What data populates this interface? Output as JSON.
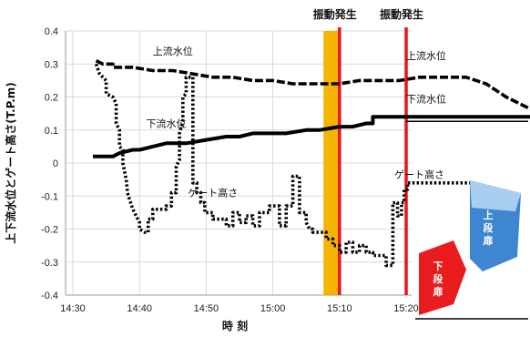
{
  "chart_data": {
    "type": "line",
    "ylabel": "上下流水位とゲート高さ(T.P.m)",
    "xlabel": "時 刻",
    "ylim": [
      -0.4,
      0.4
    ],
    "yticks": [
      "0.4",
      "0.3",
      "0.2",
      "0.1",
      "0",
      "-0.1",
      "-0.2",
      "-0.3",
      "-0.4"
    ],
    "xlim_minutes": [
      870,
      925
    ],
    "xticks": [
      {
        "label": "14:30",
        "minute": 870
      },
      {
        "label": "14:40",
        "minute": 880
      },
      {
        "label": "14:50",
        "minute": 890
      },
      {
        "label": "15:00",
        "minute": 900
      },
      {
        "label": "15:10",
        "minute": 910
      },
      {
        "label": "15:20",
        "minute": 920
      }
    ],
    "grid": true,
    "events": [
      {
        "label": "振動発生",
        "minute": 910,
        "band_start": 907.6,
        "color": "#f5b400",
        "line_color": "#e8151c"
      },
      {
        "label": "振動発生",
        "minute": 920,
        "color": "#e8151c"
      }
    ],
    "series": [
      {
        "name": "上流水位",
        "style": "dashed-thick",
        "points": [
          [
            873.5,
            0.31
          ],
          [
            874.5,
            0.3
          ],
          [
            876,
            0.3
          ],
          [
            876,
            0.29
          ],
          [
            879,
            0.29
          ],
          [
            882,
            0.28
          ],
          [
            885,
            0.28
          ],
          [
            888,
            0.27
          ],
          [
            891,
            0.26
          ],
          [
            894,
            0.26
          ],
          [
            897,
            0.25
          ],
          [
            900,
            0.25
          ],
          [
            903,
            0.24
          ],
          [
            906,
            0.24
          ],
          [
            910,
            0.24
          ],
          [
            913,
            0.25
          ],
          [
            916,
            0.25
          ],
          [
            919,
            0.25
          ],
          [
            922,
            0.26
          ],
          [
            926,
            0.26
          ],
          [
            929,
            0.26
          ],
          [
            932,
            0.24
          ],
          [
            935,
            0.2
          ],
          [
            938,
            0.17
          ],
          [
            941,
            0.14
          ],
          [
            943,
            0.14
          ]
        ]
      },
      {
        "name": "下流水位",
        "style": "solid-thick",
        "points": [
          [
            873,
            0.02
          ],
          [
            876,
            0.02
          ],
          [
            877,
            0.03
          ],
          [
            879,
            0.04
          ],
          [
            880,
            0.04
          ],
          [
            882,
            0.05
          ],
          [
            884,
            0.06
          ],
          [
            887,
            0.06
          ],
          [
            890,
            0.07
          ],
          [
            893,
            0.08
          ],
          [
            895,
            0.08
          ],
          [
            897,
            0.09
          ],
          [
            899,
            0.09
          ],
          [
            902,
            0.09
          ],
          [
            905,
            0.1
          ],
          [
            907,
            0.1
          ],
          [
            910,
            0.11
          ],
          [
            912,
            0.11
          ],
          [
            914,
            0.12
          ],
          [
            915,
            0.12
          ],
          [
            915,
            0.14
          ],
          [
            920,
            0.14
          ],
          [
            943,
            0.14
          ]
        ]
      },
      {
        "name": "ゲート高さ",
        "style": "dotted-thick",
        "points": [
          [
            873.5,
            0.3
          ],
          [
            874,
            0.27
          ],
          [
            875,
            0.25
          ],
          [
            875,
            0.21
          ],
          [
            876,
            0.2
          ],
          [
            876.5,
            0.18
          ],
          [
            876.5,
            0.12
          ],
          [
            877,
            0.1
          ],
          [
            877,
            0.05
          ],
          [
            877.5,
            0.04
          ],
          [
            877.5,
            0.0
          ],
          [
            878,
            -0.05
          ],
          [
            878.2,
            -0.09
          ],
          [
            878.5,
            -0.11
          ],
          [
            879,
            -0.14
          ],
          [
            879.5,
            -0.16
          ],
          [
            880,
            -0.18
          ],
          [
            880,
            -0.2
          ],
          [
            880.8,
            -0.21
          ],
          [
            881.3,
            -0.21
          ],
          [
            881.3,
            -0.17
          ],
          [
            882,
            -0.17
          ],
          [
            882,
            -0.14
          ],
          [
            884,
            -0.14
          ],
          [
            884,
            -0.13
          ],
          [
            884.8,
            -0.13
          ],
          [
            884.8,
            -0.09
          ],
          [
            885.5,
            -0.09
          ],
          [
            885.5,
            -0.01
          ],
          [
            886,
            0.01
          ],
          [
            886,
            0.09
          ],
          [
            886.5,
            0.13
          ],
          [
            886.5,
            0.2
          ],
          [
            887,
            0.21
          ],
          [
            887,
            0.26
          ],
          [
            888,
            0.26
          ],
          [
            888,
            -0.06
          ],
          [
            888.6,
            -0.06
          ],
          [
            888.6,
            -0.09
          ],
          [
            889.2,
            -0.09
          ],
          [
            889.2,
            -0.12
          ],
          [
            889.8,
            -0.12
          ],
          [
            889.8,
            -0.15
          ],
          [
            891,
            -0.15
          ],
          [
            891,
            -0.17
          ],
          [
            893,
            -0.17
          ],
          [
            893,
            -0.19
          ],
          [
            894,
            -0.19
          ],
          [
            894,
            -0.15
          ],
          [
            895,
            -0.15
          ],
          [
            895,
            -0.18
          ],
          [
            896,
            -0.18
          ],
          [
            896,
            -0.16
          ],
          [
            897,
            -0.16
          ],
          [
            897,
            -0.19
          ],
          [
            898,
            -0.19
          ],
          [
            898,
            -0.15
          ],
          [
            899.5,
            -0.15
          ],
          [
            899.5,
            -0.13
          ],
          [
            901,
            -0.13
          ],
          [
            901,
            -0.19
          ],
          [
            902,
            -0.19
          ],
          [
            902,
            -0.13
          ],
          [
            903,
            -0.13
          ],
          [
            903,
            -0.04
          ],
          [
            904,
            -0.04
          ],
          [
            904,
            -0.15
          ],
          [
            905,
            -0.15
          ],
          [
            905,
            -0.18
          ],
          [
            905.5,
            -0.2
          ],
          [
            906,
            -0.2
          ],
          [
            906,
            -0.21
          ],
          [
            908,
            -0.21
          ],
          [
            908,
            -0.23
          ],
          [
            909,
            -0.23
          ],
          [
            909,
            -0.25
          ],
          [
            910,
            -0.25
          ],
          [
            910,
            -0.27
          ],
          [
            911,
            -0.27
          ],
          [
            911,
            -0.24
          ],
          [
            912,
            -0.24
          ],
          [
            912,
            -0.27
          ],
          [
            913,
            -0.27
          ],
          [
            913,
            -0.25
          ],
          [
            914,
            -0.25
          ],
          [
            914,
            -0.27
          ],
          [
            915,
            -0.27
          ],
          [
            915,
            -0.28
          ],
          [
            917,
            -0.28
          ],
          [
            917,
            -0.31
          ],
          [
            918,
            -0.31
          ],
          [
            918,
            -0.12
          ],
          [
            918.7,
            -0.12
          ],
          [
            918.7,
            -0.16
          ],
          [
            919.3,
            -0.16
          ],
          [
            919.3,
            -0.12
          ],
          [
            919.7,
            -0.12
          ],
          [
            919.7,
            -0.08
          ],
          [
            920.2,
            -0.08
          ],
          [
            920.2,
            -0.06
          ],
          [
            926,
            -0.06
          ],
          [
            930,
            -0.06
          ]
        ]
      }
    ],
    "annotations": [
      {
        "text": "上流水位",
        "x_minute": 885,
        "y": 0.34
      },
      {
        "text": "下流水位",
        "x_minute": 884,
        "y": 0.12
      },
      {
        "text": "ゲート高さ",
        "x_minute": 891,
        "y": -0.09
      },
      {
        "text": "上流水位",
        "x_minute": 923,
        "y": 0.325
      },
      {
        "text": "下流水位",
        "x_minute": 923,
        "y": 0.195
      },
      {
        "text": "ゲート高さ",
        "x_minute": 922,
        "y": -0.035
      }
    ],
    "gate_labels": {
      "lower": "下段扉",
      "upper": "上段扉"
    },
    "colors": {
      "lower_gate": "#e81c1c",
      "upper_gate": "#3f86d1",
      "upper_gate_top": "#a9cff0",
      "grid": "#d9d9d9",
      "axis": "#999999"
    }
  }
}
